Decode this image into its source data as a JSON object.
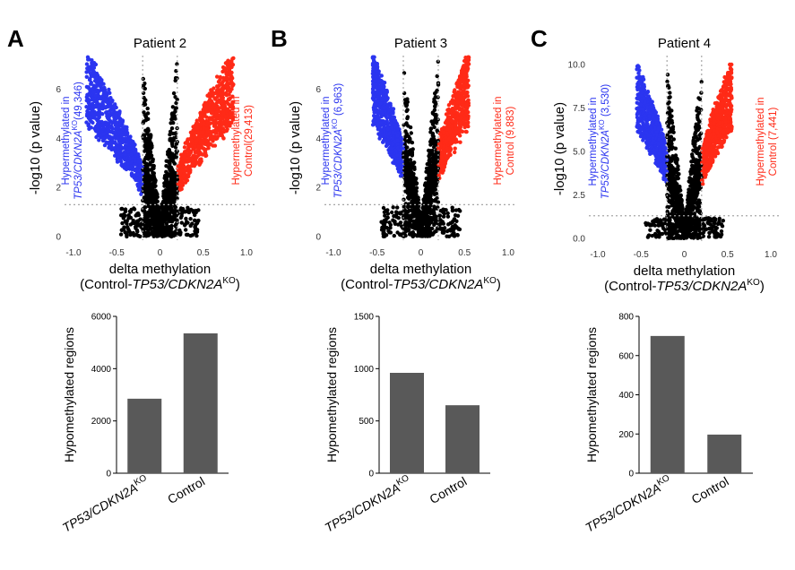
{
  "colors": {
    "hyper_ko": "#2b35f0",
    "hyper_control": "#ff2a17",
    "ns": "#000000",
    "bar": "#595959",
    "threshold": "#a6a6a6"
  },
  "panels": [
    {
      "letter": "A",
      "title": "Patient 2",
      "volcano": {
        "xlim": [
          -1.0,
          1.0
        ],
        "ylim": [
          0,
          7
        ],
        "xticks": [
          "-1.0",
          "-0.5",
          "0",
          "0.5",
          "1.0"
        ],
        "yticks": [
          "0",
          "2",
          "4",
          "6"
        ],
        "ymax_data": 7.3,
        "ko_label_line1": "Hypermethylated in",
        "ko_label_line2_gene": "TP53/CDKN2A",
        "ko_label_line2_sup": "KO",
        "ko_label_line2_count": "(49,346)",
        "control_label_line1": "Hypermethylated in",
        "control_label_line2": "Control(29,413)"
      },
      "bar": {
        "categories": [
          "TP53/CDKN2A",
          "Control"
        ],
        "category_sup": [
          "KO",
          ""
        ],
        "values": [
          2850,
          5350
        ],
        "ylim": [
          0,
          6000
        ],
        "yticks": [
          "0",
          "2000",
          "4000",
          "6000"
        ]
      }
    },
    {
      "letter": "B",
      "title": "Patient 3",
      "volcano": {
        "xlim": [
          -1.0,
          1.0
        ],
        "ylim": [
          0,
          7
        ],
        "xticks": [
          "-1.0",
          "-0.5",
          "0",
          "0.5",
          "1.0"
        ],
        "yticks": [
          "0",
          "2",
          "4",
          "6"
        ],
        "ymax_data": 7.3,
        "ko_label_line1": "Hypermethylated in",
        "ko_label_line2_gene": "TP53/CDKN2A",
        "ko_label_line2_sup": "KO",
        "ko_label_line2_count": " (6,963)",
        "control_label_line1": "Hypermethylated in",
        "control_label_line2": "Control (9,883)"
      },
      "bar": {
        "categories": [
          "TP53/CDKN2A",
          "Control"
        ],
        "category_sup": [
          "KO",
          ""
        ],
        "values": [
          960,
          650
        ],
        "ylim": [
          0,
          1500
        ],
        "yticks": [
          "0",
          "500",
          "1000",
          "1500"
        ]
      }
    },
    {
      "letter": "C",
      "title": "Patient 4",
      "volcano": {
        "xlim": [
          -1.0,
          1.0
        ],
        "ylim": [
          0,
          10
        ],
        "xticks": [
          "-1.0",
          "-0.5",
          "0",
          "0.5",
          "1.0"
        ],
        "yticks": [
          "0.0",
          "2.5",
          "5.0",
          "7.5",
          "10.0"
        ],
        "ymax_data": 10.0,
        "ko_label_line1": "Hypermethylated in",
        "ko_label_line2_gene": "TP53/CDKN2A",
        "ko_label_line2_sup": "KO",
        "ko_label_line2_count": " (3,530)",
        "control_label_line1": "Hypermethylated in",
        "control_label_line2": "Control (7,441)"
      },
      "bar": {
        "categories": [
          "TP53/CDKN2A",
          "Control"
        ],
        "category_sup": [
          "KO",
          ""
        ],
        "values": [
          700,
          197
        ],
        "ylim": [
          0,
          800
        ],
        "yticks": [
          "0",
          "200",
          "400",
          "600",
          "800"
        ]
      }
    }
  ],
  "volcano_ylabel": "-log10 (p value)",
  "volcano_xlabel_line1": "delta methylation",
  "volcano_xlabel_line2_prefix": "(Control-",
  "volcano_xlabel_line2_gene": "TP53/CDKN2A",
  "volcano_xlabel_line2_sup": "KO",
  "volcano_xlabel_line2_suffix": ")",
  "bar_ylabel": "Hypomethylated regions",
  "chart_data": [
    {
      "type": "scatter",
      "title": "Patient 2",
      "xlabel": "delta methylation (Control-TP53/CDKN2A KO)",
      "ylabel": "-log10 (p value)",
      "xlim": [
        -1.0,
        1.0
      ],
      "ylim": [
        0,
        7
      ],
      "series": [
        {
          "name": "Hypermethylated in TP53/CDKN2A KO (49,346)"
        },
        {
          "name": "Hypermethylated in Control(29,413)"
        }
      ]
    },
    {
      "type": "scatter",
      "title": "Patient 3",
      "xlabel": "delta methylation (Control-TP53/CDKN2A KO)",
      "ylabel": "-log10 (p value)",
      "xlim": [
        -1.0,
        1.0
      ],
      "ylim": [
        0,
        7
      ],
      "series": [
        {
          "name": "Hypermethylated in TP53/CDKN2A KO (6,963)"
        },
        {
          "name": "Hypermethylated in Control (9,883)"
        }
      ]
    },
    {
      "type": "scatter",
      "title": "Patient 4",
      "xlabel": "delta methylation (Control-TP53/CDKN2A KO)",
      "ylabel": "-log10 (p value)",
      "xlim": [
        -1.0,
        1.0
      ],
      "ylim": [
        0,
        10
      ],
      "series": [
        {
          "name": "Hypermethylated in TP53/CDKN2A KO (3,530)"
        },
        {
          "name": "Hypermethylated in Control (7,441)"
        }
      ]
    },
    {
      "type": "bar",
      "ylabel": "Hypomethylated regions",
      "categories": [
        "TP53/CDKN2A KO",
        "Control"
      ],
      "values": [
        2850,
        5350
      ],
      "ylim": [
        0,
        6000
      ]
    },
    {
      "type": "bar",
      "ylabel": "Hypomethylated regions",
      "categories": [
        "TP53/CDKN2A KO",
        "Control"
      ],
      "values": [
        960,
        650
      ],
      "ylim": [
        0,
        1500
      ]
    },
    {
      "type": "bar",
      "ylabel": "Hypomethylated regions",
      "categories": [
        "TP53/CDKN2A KO",
        "Control"
      ],
      "values": [
        700,
        197
      ],
      "ylim": [
        0,
        800
      ]
    }
  ]
}
